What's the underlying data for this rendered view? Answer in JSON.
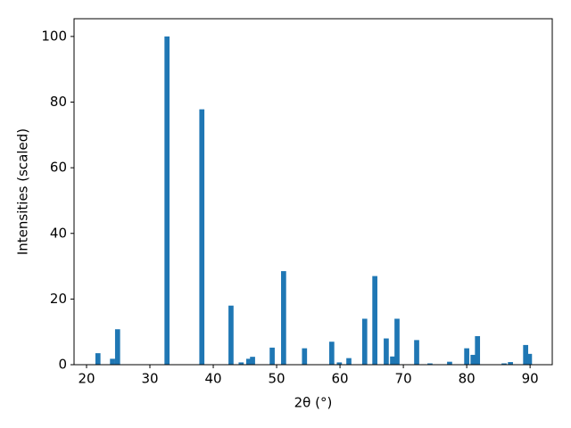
{
  "chart_data": {
    "type": "bar",
    "color": "#1f77b4",
    "x_label": "2θ (°)",
    "y_label": "Intensities (scaled)",
    "x": [
      21.8,
      24.1,
      24.9,
      32.7,
      38.2,
      42.8,
      44.4,
      45.6,
      46.2,
      49.3,
      51.1,
      54.4,
      58.7,
      59.9,
      61.4,
      63.9,
      65.5,
      67.3,
      68.3,
      69.0,
      72.1,
      74.2,
      77.3,
      80.0,
      81.0,
      81.7,
      85.9,
      86.9,
      89.3,
      89.9
    ],
    "values": [
      3.5,
      1.8,
      10.8,
      100,
      77.8,
      18,
      0.7,
      1.8,
      2.4,
      5.2,
      28.5,
      5,
      7,
      0.7,
      2,
      14,
      27,
      8,
      2.5,
      14,
      7.5,
      0.4,
      0.9,
      5,
      3,
      8.7,
      0.4,
      0.8,
      6,
      3.3
    ],
    "xlim": [
      18.03,
      93.5
    ],
    "ylim": [
      0,
      105.4
    ],
    "xticks": [
      20,
      30,
      40,
      50,
      60,
      70,
      80,
      90
    ],
    "yticks": [
      0,
      20,
      40,
      60,
      80,
      100
    ]
  }
}
